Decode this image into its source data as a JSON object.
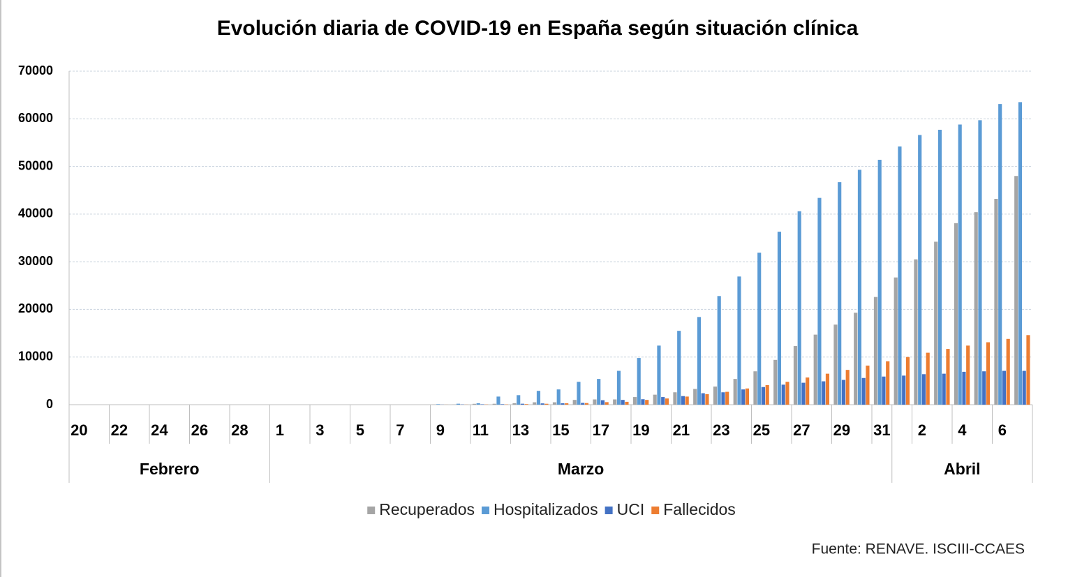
{
  "chart_data": {
    "type": "bar",
    "title": "Evolución diaria de COVID-19 en España según situación clínica",
    "source": "Fuente: RENAVE. ISCIII-CCAES",
    "categories": [
      "20",
      null,
      "22",
      null,
      "24",
      null,
      "26",
      null,
      "28",
      null,
      "1",
      null,
      "3",
      null,
      "5",
      null,
      "7",
      null,
      "9",
      null,
      "11",
      null,
      "13",
      null,
      "15",
      null,
      "17",
      null,
      "19",
      null,
      "21",
      null,
      "23",
      null,
      "25",
      null,
      "27",
      null,
      "29",
      null,
      "31",
      null,
      "2",
      null,
      "4",
      null,
      "6",
      null
    ],
    "groups": [
      {
        "label": "Febrero",
        "count": 10
      },
      {
        "label": "Marzo",
        "count": 31
      },
      {
        "label": "Abril",
        "count": 7
      }
    ],
    "series": [
      {
        "name": "Recuperados",
        "color": "#a5a5a5",
        "values": [
          0,
          0,
          0,
          0,
          0,
          0,
          0,
          0,
          0,
          0,
          0,
          0,
          0,
          0,
          0,
          0,
          0,
          0,
          30,
          30,
          180,
          190,
          300,
          500,
          500,
          1000,
          1100,
          1100,
          1600,
          2100,
          2600,
          3300,
          3800,
          5400,
          7000,
          9400,
          12300,
          14700,
          16800,
          19300,
          22600,
          26700,
          30500,
          34200,
          38100,
          40400,
          43200,
          48000
        ]
      },
      {
        "name": "Hospitalizados",
        "color": "#5b9bd5",
        "values": [
          0,
          0,
          0,
          0,
          0,
          0,
          0,
          0,
          0,
          0,
          0,
          0,
          0,
          0,
          0,
          0,
          0,
          0,
          100,
          200,
          300,
          1700,
          2000,
          2900,
          3200,
          4800,
          5400,
          7100,
          9800,
          12400,
          15500,
          18400,
          22800,
          26900,
          31900,
          36300,
          40600,
          43400,
          46700,
          49300,
          51400,
          54200,
          56600,
          57700,
          58800,
          59700,
          63100,
          63500
        ]
      },
      {
        "name": "UCI",
        "color": "#4472c4",
        "values": [
          0,
          0,
          0,
          0,
          0,
          0,
          0,
          0,
          0,
          0,
          0,
          0,
          0,
          0,
          0,
          0,
          0,
          0,
          20,
          50,
          80,
          100,
          200,
          270,
          290,
          380,
          940,
          1000,
          1140,
          1600,
          1800,
          2400,
          2600,
          3200,
          3700,
          4200,
          4600,
          4900,
          5200,
          5600,
          5900,
          6100,
          6400,
          6500,
          6900,
          7000,
          7100,
          7100
        ]
      },
      {
        "name": "Fallecidos",
        "color": "#ed7d31",
        "values": [
          0,
          0,
          0,
          0,
          0,
          0,
          0,
          0,
          0,
          0,
          0,
          0,
          0,
          0,
          0,
          0,
          0,
          0,
          10,
          20,
          40,
          50,
          120,
          190,
          290,
          340,
          530,
          600,
          1000,
          1300,
          1700,
          2200,
          2700,
          3400,
          4100,
          4800,
          5700,
          6500,
          7300,
          8200,
          9100,
          10000,
          10900,
          11700,
          12400,
          13100,
          13800,
          14600
        ]
      }
    ],
    "ylim": [
      0,
      70000
    ],
    "yticks": [
      0,
      10000,
      20000,
      30000,
      40000,
      50000,
      60000,
      70000
    ],
    "grid": true
  }
}
